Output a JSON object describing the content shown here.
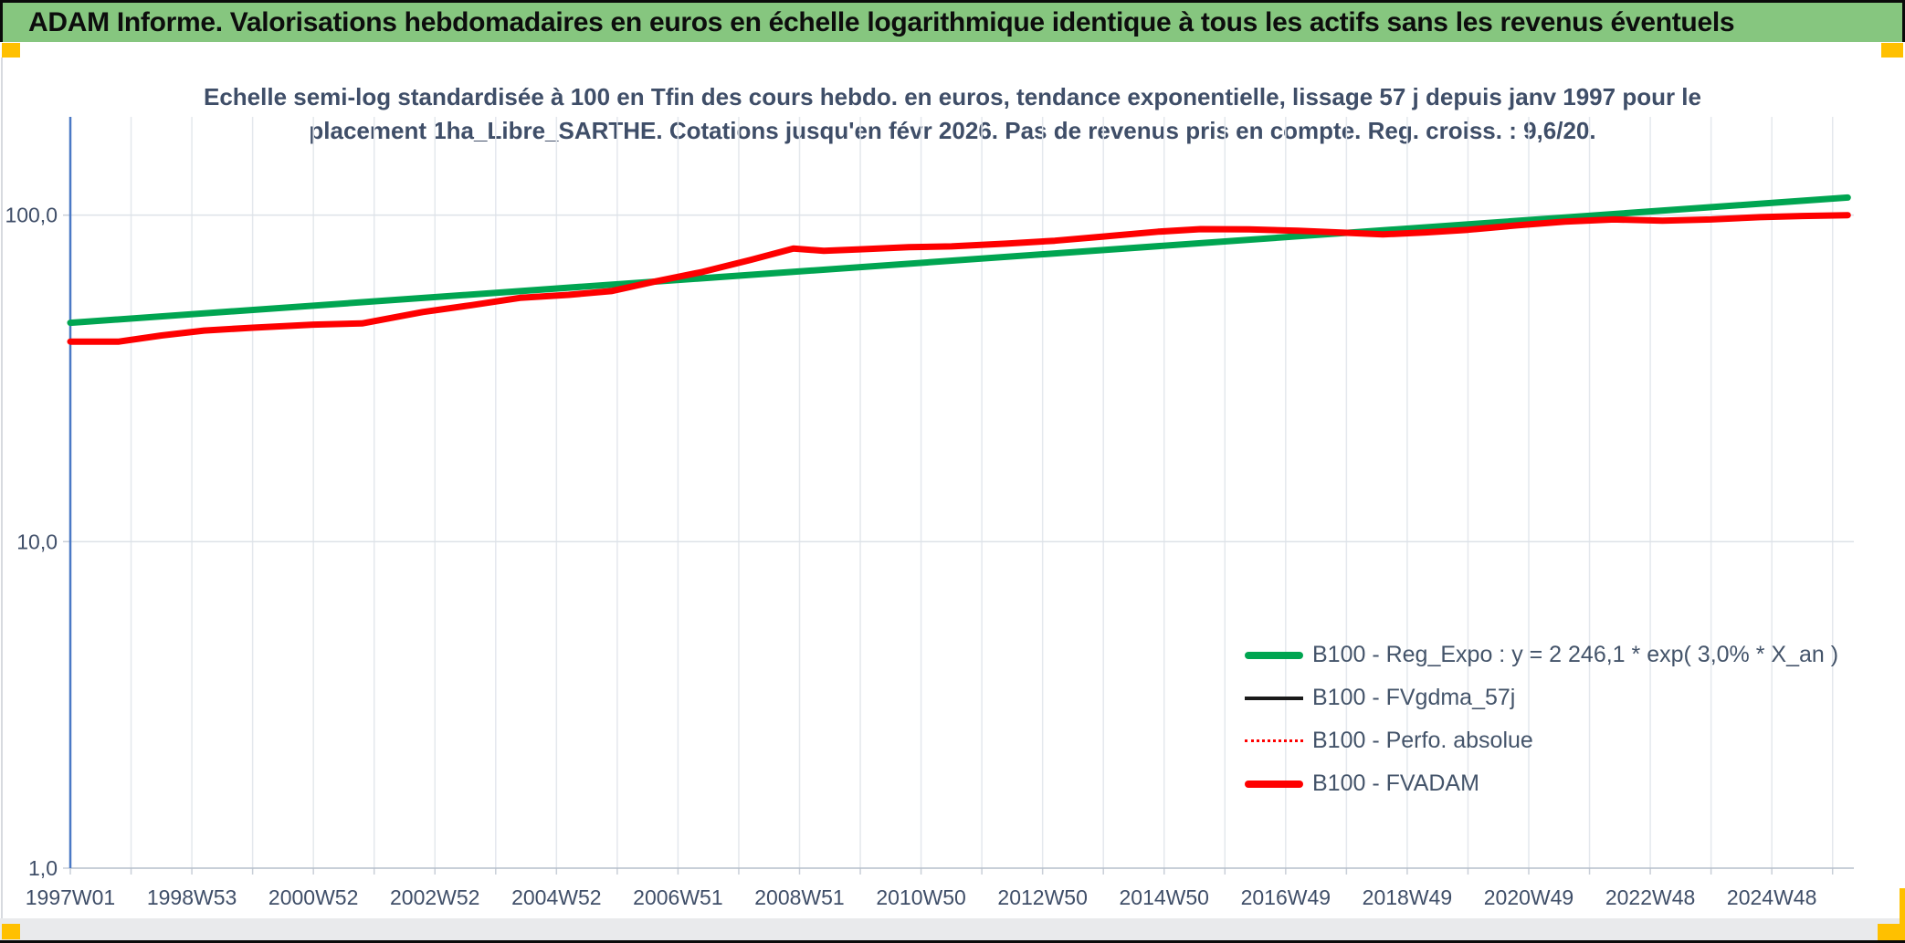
{
  "banner": {
    "title": "ADAM Informe. Valorisations hebdomadaires en euros en échelle logarithmique identique à tous les actifs sans les revenus éventuels"
  },
  "subtitle": {
    "line1": "Echelle semi-log standardisée à 100 en Tfin des cours hebdo. en euros, tendance exponentielle, lissage 57 j depuis janv 1997 pour le",
    "line2": "placement 1ha_Libre_SARTHE. Cotations jusqu'en févr 2026. Pas de revenus pris en compte. Reg. croiss. : 9,6/20."
  },
  "colors": {
    "banner_green": "#86C67F",
    "accent_yellow": "#FFC000",
    "regression_green": "#00A551",
    "series_red": "#FE0000",
    "series_black": "#1A1A1A",
    "text_navy": "#3F4E68",
    "legend_text": "#44546A",
    "axis_blue": "#4A79C5",
    "grid_vertical": "#E4E8ED",
    "grid_horizontal": "#DDE2E8",
    "axis_baseline": "#B6BFCB"
  },
  "chart_data": {
    "type": "line",
    "x_scale": "linear-weekly",
    "y_scale": "log10",
    "xlim": [
      1997.0,
      2026.35
    ],
    "ylim": [
      1.0,
      200.0
    ],
    "grid": "on",
    "legend_position": "lower-right-inside",
    "x_axis": {
      "ticks": [
        {
          "t": 1997,
          "label": "1997W01"
        },
        {
          "t": 1999,
          "label": "1998W53"
        },
        {
          "t": 2001,
          "label": "2000W52"
        },
        {
          "t": 2003,
          "label": "2002W52"
        },
        {
          "t": 2005,
          "label": "2004W52"
        },
        {
          "t": 2007,
          "label": "2006W51"
        },
        {
          "t": 2009,
          "label": "2008W51"
        },
        {
          "t": 2011,
          "label": "2010W50"
        },
        {
          "t": 2013,
          "label": "2012W50"
        },
        {
          "t": 2015,
          "label": "2014W50"
        },
        {
          "t": 2017,
          "label": "2016W49"
        },
        {
          "t": 2019,
          "label": "2018W49"
        },
        {
          "t": 2021,
          "label": "2020W49"
        },
        {
          "t": 2023,
          "label": "2022W48"
        },
        {
          "t": 2025,
          "label": "2024W48"
        }
      ],
      "yearly_gridlines": [
        1997,
        1998,
        1999,
        2000,
        2001,
        2002,
        2003,
        2004,
        2005,
        2006,
        2007,
        2008,
        2009,
        2010,
        2011,
        2012,
        2013,
        2014,
        2015,
        2016,
        2017,
        2018,
        2019,
        2020,
        2021,
        2022,
        2023,
        2024,
        2025,
        2026
      ]
    },
    "y_axis": {
      "ticks": [
        {
          "v": 100,
          "label": "100,0"
        },
        {
          "v": 10,
          "label": "10,0"
        },
        {
          "v": 1,
          "label": "1,0"
        }
      ]
    },
    "series": [
      {
        "name": "B100 - Reg_Expo",
        "legend_label": "B100 - Reg_Expo : y = 2 246,1 * exp( 3,0% *  X_an )",
        "color": "#00A551",
        "width": 7,
        "style": "solid",
        "points": [
          [
            1997.0,
            46.8
          ],
          [
            2026.25,
            113.2
          ]
        ]
      },
      {
        "name": "B100 - FVgdma_57j",
        "legend_label": "B100 - FVgdma_57j",
        "color": "#1A1A1A",
        "width": 3,
        "style": "solid",
        "points_ref": "B100 - FVADAM",
        "note": "visually coincides with FVADAM, hidden beneath the red line"
      },
      {
        "name": "B100 - Perfo. absolue",
        "legend_label": "B100 - Perfo. absolue",
        "color": "#FF0000",
        "width": 2.5,
        "style": "dotted",
        "points_ref": "B100 - FVADAM",
        "note": "visually coincides with FVADAM, hidden beneath the red line"
      },
      {
        "name": "B100 - FVADAM",
        "legend_label": "B100 - FVADAM",
        "color": "#FE0000",
        "width": 7,
        "style": "solid",
        "points": [
          [
            1997.0,
            41.0
          ],
          [
            1997.8,
            41.0
          ],
          [
            1998.5,
            42.8
          ],
          [
            1999.2,
            44.3
          ],
          [
            2000.0,
            45.2
          ],
          [
            2001.0,
            46.2
          ],
          [
            2001.8,
            46.6
          ],
          [
            2002.8,
            50.5
          ],
          [
            2003.6,
            53.0
          ],
          [
            2004.4,
            55.8
          ],
          [
            2005.2,
            57.0
          ],
          [
            2005.9,
            58.5
          ],
          [
            2006.6,
            62.5
          ],
          [
            2007.4,
            67.0
          ],
          [
            2008.2,
            73.0
          ],
          [
            2008.9,
            79.0
          ],
          [
            2009.4,
            77.8
          ],
          [
            2010.0,
            78.6
          ],
          [
            2010.8,
            79.8
          ],
          [
            2011.5,
            80.2
          ],
          [
            2012.4,
            81.8
          ],
          [
            2013.2,
            83.5
          ],
          [
            2014.0,
            86.0
          ],
          [
            2014.9,
            89.0
          ],
          [
            2015.6,
            90.6
          ],
          [
            2016.4,
            90.4
          ],
          [
            2017.2,
            89.6
          ],
          [
            2018.0,
            88.3
          ],
          [
            2018.6,
            87.3
          ],
          [
            2019.3,
            88.5
          ],
          [
            2020.0,
            90.2
          ],
          [
            2020.8,
            93.0
          ],
          [
            2021.6,
            95.5
          ],
          [
            2022.4,
            97.0
          ],
          [
            2023.2,
            96.2
          ],
          [
            2024.0,
            97.0
          ],
          [
            2024.8,
            98.6
          ],
          [
            2025.5,
            99.4
          ],
          [
            2026.25,
            100.0
          ]
        ]
      }
    ]
  }
}
